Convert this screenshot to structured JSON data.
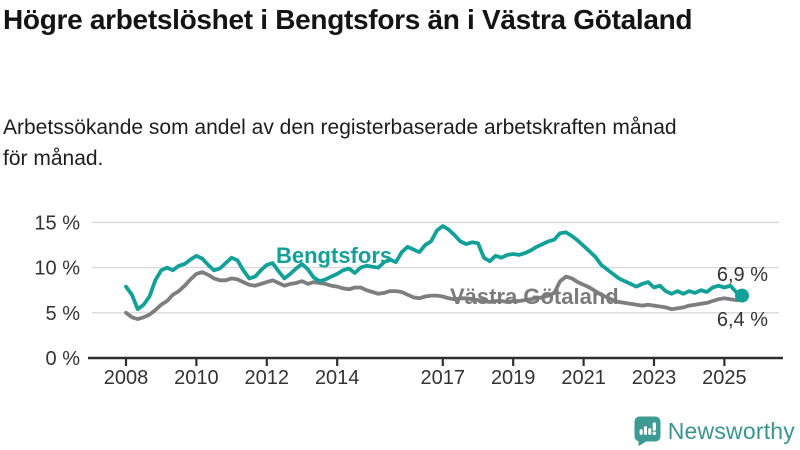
{
  "header": {
    "title": "Högre arbetslöshet i Bengtsfors än i Västra Götaland",
    "subtitle": "Arbetssökande som andel av den registerbaserade arbetskraften månad för månad."
  },
  "chart_data": {
    "type": "line",
    "title": "Högre arbetslöshet i Bengtsfors än i Västra Götaland",
    "unit": "% av registerbaserad arbetskraft",
    "x_start": 2008.0,
    "x_step": 0.16667,
    "x_range": [
      2008.0,
      2025.5
    ],
    "x_axis": {
      "ticks": [
        2008,
        2010,
        2012,
        2014,
        2017,
        2019,
        2021,
        2023,
        2025
      ],
      "labels": [
        "2008",
        "2010",
        "2012",
        "2014",
        "2017",
        "2019",
        "2021",
        "2023",
        "2025"
      ]
    },
    "y_axis": {
      "ticks": [
        0,
        5,
        10,
        15
      ],
      "labels": [
        "0 %",
        "5 %",
        "10 %",
        "15 %"
      ],
      "range": [
        0,
        16.5
      ]
    },
    "grid": true,
    "legend": "inline-labels",
    "colors": {
      "grid": "#d9d9d9",
      "axis": "#2f2f2f",
      "tick_text": "#333333"
    },
    "series": [
      {
        "name": "Bengtsfors",
        "color": "#12a098",
        "end_label": "6,9 %",
        "end_dot": true,
        "values": [
          7.9,
          7.0,
          5.4,
          5.9,
          6.8,
          8.6,
          9.7,
          10.0,
          9.7,
          10.2,
          10.4,
          10.9,
          11.3,
          11.0,
          10.3,
          9.7,
          9.9,
          10.5,
          11.1,
          10.8,
          9.7,
          8.8,
          9.0,
          9.7,
          10.3,
          10.5,
          9.6,
          8.8,
          9.3,
          9.9,
          10.4,
          9.8,
          8.9,
          8.5,
          8.7,
          9.0,
          9.3,
          9.7,
          9.9,
          9.4,
          10.0,
          10.2,
          10.1,
          10.0,
          10.6,
          10.9,
          10.6,
          11.7,
          12.3,
          12.0,
          11.7,
          12.5,
          12.9,
          14.1,
          14.6,
          14.2,
          13.6,
          12.9,
          12.6,
          12.8,
          12.7,
          11.1,
          10.7,
          11.3,
          11.1,
          11.4,
          11.5,
          11.4,
          11.6,
          11.9,
          12.3,
          12.6,
          12.9,
          13.1,
          13.8,
          13.9,
          13.5,
          13.0,
          12.4,
          11.8,
          11.2,
          10.3,
          9.8,
          9.3,
          8.8,
          8.5,
          8.2,
          7.9,
          8.2,
          8.4,
          7.8,
          8.0,
          7.4,
          7.1,
          7.4,
          7.1,
          7.4,
          7.2,
          7.5,
          7.3,
          7.8,
          8.0,
          7.8,
          8.0,
          7.3,
          6.9
        ]
      },
      {
        "name": "Västra Götaland",
        "color": "#7e7e7e",
        "end_label": "6,4 %",
        "end_dot": false,
        "values": [
          5.0,
          4.5,
          4.3,
          4.5,
          4.8,
          5.3,
          5.9,
          6.3,
          7.0,
          7.4,
          8.0,
          8.7,
          9.3,
          9.5,
          9.2,
          8.8,
          8.6,
          8.6,
          8.8,
          8.7,
          8.4,
          8.1,
          8.0,
          8.2,
          8.4,
          8.6,
          8.3,
          8.0,
          8.2,
          8.3,
          8.5,
          8.2,
          8.4,
          8.3,
          8.2,
          8.0,
          7.9,
          7.7,
          7.6,
          7.8,
          7.8,
          7.5,
          7.3,
          7.1,
          7.2,
          7.4,
          7.4,
          7.3,
          7.0,
          6.7,
          6.6,
          6.8,
          6.9,
          6.9,
          6.8,
          6.6,
          6.5,
          6.6,
          6.6,
          6.5,
          6.4,
          6.3,
          6.2,
          6.3,
          6.3,
          6.2,
          6.3,
          6.3,
          6.4,
          6.5,
          6.6,
          6.7,
          6.9,
          7.2,
          8.5,
          9.0,
          8.8,
          8.4,
          8.1,
          7.8,
          7.4,
          7.0,
          6.7,
          6.4,
          6.2,
          6.1,
          6.0,
          5.9,
          5.8,
          5.9,
          5.8,
          5.7,
          5.6,
          5.4,
          5.5,
          5.6,
          5.8,
          5.9,
          6.0,
          6.1,
          6.3,
          6.5,
          6.6,
          6.5,
          6.4,
          6.4
        ]
      }
    ]
  },
  "footer": {
    "brand": "Newsworthy",
    "logo_icon": "bar-chart-speech-bubble-icon"
  }
}
